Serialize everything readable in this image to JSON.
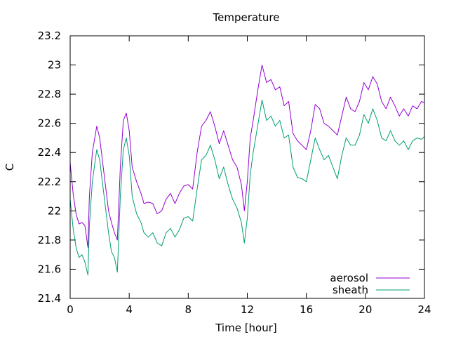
{
  "chart_data": {
    "type": "line",
    "title": "Temperature",
    "xlabel": "Time [hour]",
    "ylabel": "C",
    "xlim": [
      0,
      24
    ],
    "ylim": [
      21.4,
      23.2
    ],
    "xticks": [
      0,
      4,
      8,
      12,
      16,
      20,
      24
    ],
    "yticks": [
      21.4,
      21.6,
      21.8,
      22,
      22.2,
      22.4,
      22.6,
      22.8,
      23,
      23.2
    ],
    "ytick_labels": [
      "21.4",
      "21.6",
      "21.8",
      "22",
      "22.2",
      "22.4",
      "22.6",
      "22.8",
      "23",
      "23.2"
    ],
    "grid": false,
    "legend_position": "bottom-right",
    "series": [
      {
        "name": "aerosol",
        "color": "#9400d3",
        "x": [
          0,
          0.2,
          0.4,
          0.6,
          0.8,
          1.0,
          1.2,
          1.3,
          1.5,
          1.8,
          2.0,
          2.3,
          2.6,
          2.8,
          3.0,
          3.2,
          3.4,
          3.6,
          3.8,
          4.0,
          4.2,
          4.5,
          4.8,
          5.0,
          5.3,
          5.6,
          5.9,
          6.2,
          6.5,
          6.8,
          7.1,
          7.4,
          7.7,
          8.0,
          8.3,
          8.6,
          8.9,
          9.2,
          9.5,
          9.8,
          10.1,
          10.4,
          10.7,
          11.0,
          11.3,
          11.6,
          11.8,
          12.0,
          12.2,
          12.4,
          12.7,
          13.0,
          13.3,
          13.6,
          13.9,
          14.2,
          14.5,
          14.8,
          15.1,
          15.4,
          15.7,
          16.0,
          16.3,
          16.6,
          16.9,
          17.2,
          17.5,
          17.8,
          18.1,
          18.4,
          18.7,
          19.0,
          19.3,
          19.6,
          19.9,
          20.2,
          20.5,
          20.8,
          21.1,
          21.4,
          21.7,
          22.0,
          22.3,
          22.6,
          22.9,
          23.2,
          23.5,
          23.8,
          24.0
        ],
        "values": [
          22.33,
          22.12,
          21.98,
          21.91,
          21.92,
          21.9,
          21.75,
          22.1,
          22.4,
          22.58,
          22.5,
          22.25,
          22.0,
          21.92,
          21.85,
          21.8,
          22.3,
          22.62,
          22.67,
          22.55,
          22.3,
          22.2,
          22.12,
          22.05,
          22.06,
          22.05,
          21.98,
          22.0,
          22.08,
          22.12,
          22.05,
          22.12,
          22.17,
          22.18,
          22.15,
          22.4,
          22.58,
          22.62,
          22.68,
          22.58,
          22.46,
          22.55,
          22.45,
          22.35,
          22.3,
          22.18,
          22.0,
          22.2,
          22.5,
          22.62,
          22.82,
          23.0,
          22.88,
          22.9,
          22.83,
          22.85,
          22.72,
          22.75,
          22.53,
          22.48,
          22.45,
          22.42,
          22.55,
          22.73,
          22.7,
          22.6,
          22.58,
          22.55,
          22.52,
          22.65,
          22.78,
          22.7,
          22.68,
          22.75,
          22.88,
          22.83,
          22.92,
          22.87,
          22.75,
          22.7,
          22.78,
          22.72,
          22.65,
          22.7,
          22.65,
          22.72,
          22.7,
          22.75,
          22.74
        ]
      },
      {
        "name": "sheath",
        "color": "#009e73",
        "x": [
          0,
          0.2,
          0.4,
          0.6,
          0.8,
          1.0,
          1.2,
          1.3,
          1.5,
          1.8,
          2.0,
          2.3,
          2.6,
          2.8,
          3.0,
          3.2,
          3.4,
          3.6,
          3.8,
          4.0,
          4.2,
          4.5,
          4.8,
          5.0,
          5.3,
          5.6,
          5.9,
          6.2,
          6.5,
          6.8,
          7.1,
          7.4,
          7.7,
          8.0,
          8.3,
          8.6,
          8.9,
          9.2,
          9.5,
          9.8,
          10.1,
          10.4,
          10.7,
          11.0,
          11.3,
          11.6,
          11.8,
          12.0,
          12.2,
          12.4,
          12.7,
          13.0,
          13.3,
          13.6,
          13.9,
          14.2,
          14.5,
          14.8,
          15.1,
          15.4,
          15.7,
          16.0,
          16.3,
          16.6,
          16.9,
          17.2,
          17.5,
          17.8,
          18.1,
          18.4,
          18.7,
          19.0,
          19.3,
          19.6,
          19.9,
          20.2,
          20.5,
          20.8,
          21.1,
          21.4,
          21.7,
          22.0,
          22.3,
          22.6,
          22.9,
          23.2,
          23.5,
          23.8,
          24.0
        ],
        "values": [
          22.08,
          21.88,
          21.75,
          21.68,
          21.7,
          21.65,
          21.56,
          21.9,
          22.2,
          22.42,
          22.35,
          22.1,
          21.85,
          21.72,
          21.68,
          21.58,
          22.1,
          22.42,
          22.5,
          22.38,
          22.1,
          21.98,
          21.92,
          21.85,
          21.82,
          21.85,
          21.78,
          21.76,
          21.85,
          21.88,
          21.82,
          21.87,
          21.95,
          21.96,
          21.93,
          22.15,
          22.35,
          22.38,
          22.45,
          22.35,
          22.22,
          22.3,
          22.18,
          22.08,
          22.02,
          21.92,
          21.78,
          21.95,
          22.25,
          22.4,
          22.58,
          22.76,
          22.62,
          22.65,
          22.58,
          22.62,
          22.5,
          22.52,
          22.3,
          22.23,
          22.22,
          22.2,
          22.35,
          22.5,
          22.42,
          22.35,
          22.38,
          22.3,
          22.22,
          22.38,
          22.5,
          22.45,
          22.45,
          22.52,
          22.66,
          22.6,
          22.7,
          22.62,
          22.5,
          22.48,
          22.55,
          22.48,
          22.45,
          22.48,
          22.42,
          22.48,
          22.5,
          22.49,
          22.51
        ]
      }
    ]
  }
}
